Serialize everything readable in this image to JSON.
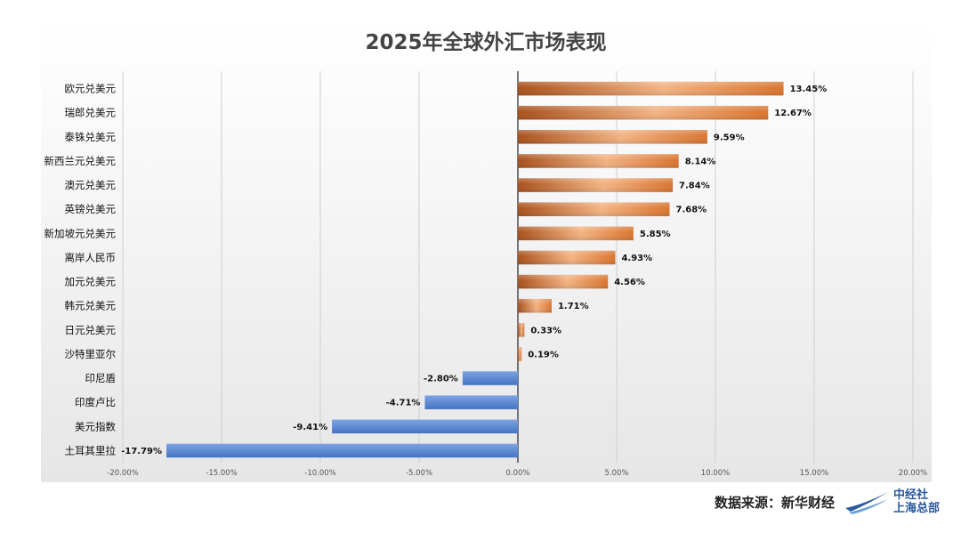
{
  "colors": {
    "positive": "#d9742f",
    "positive_light": "#f3b383",
    "positive_dark": "#a8501a",
    "negative": "#4472c4",
    "negative_light": "#7ea3e0",
    "gridline": "#cfcfcf",
    "brand": "#2a5a9e"
  },
  "footer": {
    "source": "数据来源：新华财经",
    "brand_line1": "中经社",
    "brand_line2": "上海总部",
    "brand_icon": "swoosh-logo-icon"
  },
  "chart_data": {
    "type": "bar",
    "orientation": "horizontal",
    "title": "2025年全球外汇市场表现",
    "categories": [
      "欧元兑美元",
      "瑞郎兑美元",
      "泰铢兑美元",
      "新西兰元兑美元",
      "澳元兑美元",
      "英镑兑美元",
      "新加坡元兑美元",
      "离岸人民币",
      "加元兑美元",
      "韩元兑美元",
      "日元兑美元",
      "沙特里亚尔",
      "印尼盾",
      "印度卢比",
      "美元指数",
      "土耳其里拉"
    ],
    "values": [
      13.45,
      12.67,
      9.59,
      8.14,
      7.84,
      7.68,
      5.85,
      4.93,
      4.56,
      1.71,
      0.33,
      0.19,
      -2.8,
      -4.71,
      -9.41,
      -17.79
    ],
    "data_labels": [
      "13.45%",
      "12.67%",
      "9.59%",
      "8.14%",
      "7.84%",
      "7.68%",
      "5.85%",
      "4.93%",
      "4.56%",
      "1.71%",
      "0.33%",
      "0.19%",
      "-2.80%",
      "-4.71%",
      "-9.41%",
      "-17.79%"
    ],
    "xlim": [
      -20,
      20
    ],
    "x_ticks": [
      -20,
      -15,
      -10,
      -5,
      0,
      5,
      10,
      15,
      20
    ],
    "x_tick_labels": [
      "-20.00%",
      "-15.00%",
      "-10.00%",
      "-5.00%",
      "0.00%",
      "5.00%",
      "10.00%",
      "15.00%",
      "20.00%"
    ],
    "xlabel": "",
    "ylabel": "",
    "grid": "vertical",
    "legend": "none"
  }
}
